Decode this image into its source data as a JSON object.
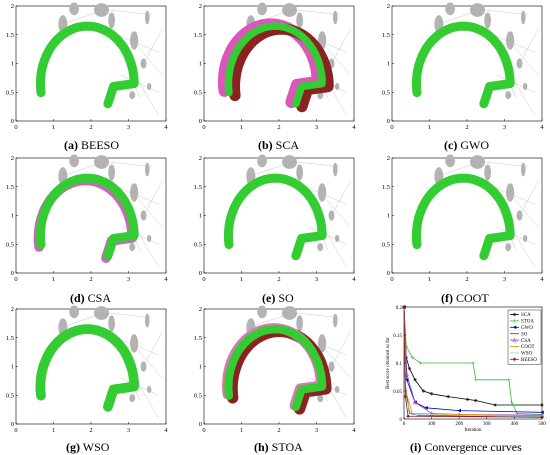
{
  "chart_data": [
    {
      "type": "scatter",
      "panel": "a",
      "caption_letter": "(a)",
      "caption_text": "BEESO",
      "xlim": [
        0,
        4
      ],
      "ylim": [
        0,
        2
      ],
      "xticks": [
        "0",
        "1",
        "2",
        "3",
        "4"
      ],
      "yticks": [
        "0",
        "0.5",
        "1",
        "1.5",
        "2"
      ],
      "layers": [
        {
          "color": "#33cc33",
          "width": 0.24,
          "offset": [
            0,
            0
          ]
        }
      ]
    },
    {
      "type": "scatter",
      "panel": "b",
      "caption_letter": "(b)",
      "caption_text": "SCA",
      "xlim": [
        0,
        4
      ],
      "ylim": [
        0,
        2
      ],
      "xticks": [
        "0",
        "1",
        "2",
        "3",
        "4"
      ],
      "yticks": [
        "0",
        "0.5",
        "1",
        "1.5",
        "2"
      ],
      "layers": [
        {
          "color": "#dd55bb",
          "width": 0.32,
          "offset": [
            -0.12,
            0.03
          ]
        },
        {
          "color": "#8b2222",
          "width": 0.3,
          "offset": [
            0.16,
            -0.05
          ]
        },
        {
          "color": "#33cc33",
          "width": 0.2,
          "offset": [
            0,
            0
          ]
        }
      ]
    },
    {
      "type": "scatter",
      "panel": "c",
      "caption_letter": "(c)",
      "caption_text": "GWO",
      "xlim": [
        0,
        4
      ],
      "ylim": [
        0,
        2
      ],
      "xticks": [
        "0",
        "1",
        "2",
        "3",
        "4"
      ],
      "yticks": [
        "0",
        "0.5",
        "1",
        "1.5",
        "2"
      ],
      "layers": [
        {
          "color": "#33cc33",
          "width": 0.24,
          "offset": [
            0,
            0
          ]
        }
      ]
    },
    {
      "type": "scatter",
      "panel": "d",
      "caption_letter": "(d)",
      "caption_text": "CSA",
      "xlim": [
        0,
        4
      ],
      "ylim": [
        0,
        2
      ],
      "xticks": [
        "0",
        "1",
        "2",
        "3",
        "4"
      ],
      "yticks": [
        "0",
        "0.5",
        "1",
        "1.5",
        "2"
      ],
      "layers": [
        {
          "color": "#cc66bb",
          "width": 0.26,
          "offset": [
            -0.05,
            -0.04
          ]
        },
        {
          "color": "#33cc33",
          "width": 0.24,
          "offset": [
            0,
            0
          ]
        }
      ]
    },
    {
      "type": "scatter",
      "panel": "e",
      "caption_letter": "(e)",
      "caption_text": "SO",
      "xlim": [
        0,
        4
      ],
      "ylim": [
        0,
        2
      ],
      "xticks": [
        "0",
        "1",
        "2",
        "3",
        "4"
      ],
      "yticks": [
        "0",
        "0.5",
        "1",
        "1.5",
        "2"
      ],
      "layers": [
        {
          "color": "#33cc33",
          "width": 0.24,
          "offset": [
            0,
            0
          ]
        }
      ]
    },
    {
      "type": "scatter",
      "panel": "f",
      "caption_letter": "(f)",
      "caption_text": "COOT",
      "xlim": [
        0,
        4
      ],
      "ylim": [
        0,
        2
      ],
      "xticks": [
        "0",
        "1",
        "2",
        "3",
        "4"
      ],
      "yticks": [
        "0",
        "0.5",
        "1",
        "1.5",
        "2"
      ],
      "layers": [
        {
          "color": "#33cc33",
          "width": 0.24,
          "offset": [
            0,
            0
          ]
        }
      ]
    },
    {
      "type": "scatter",
      "panel": "g",
      "caption_letter": "(g)",
      "caption_text": "WSO",
      "xlim": [
        0,
        4
      ],
      "ylim": [
        0,
        2
      ],
      "xticks": [
        "0",
        "1",
        "2",
        "3",
        "4"
      ],
      "yticks": [
        "0",
        "0.5",
        "1",
        "1.5",
        "2"
      ],
      "layers": [
        {
          "color": "#33cc33",
          "width": 0.26,
          "offset": [
            0,
            0
          ]
        }
      ]
    },
    {
      "type": "scatter",
      "panel": "h",
      "caption_letter": "(h)",
      "caption_text": "STOA",
      "xlim": [
        0,
        4
      ],
      "ylim": [
        0,
        2
      ],
      "xticks": [
        "0",
        "1",
        "2",
        "3",
        "4"
      ],
      "yticks": [
        "0",
        "0.5",
        "1",
        "1.5",
        "2"
      ],
      "layers": [
        {
          "color": "#8b2222",
          "width": 0.3,
          "offset": [
            0.1,
            -0.04
          ]
        },
        {
          "color": "#dd77bb",
          "width": 0.26,
          "offset": [
            -0.04,
            0.02
          ]
        },
        {
          "color": "#33cc33",
          "width": 0.22,
          "offset": [
            0,
            0
          ]
        }
      ]
    },
    {
      "type": "line",
      "panel": "i",
      "caption_letter": "(i)",
      "caption_text": "Convergence curves",
      "xlabel": "Iteration",
      "ylabel": "Best score obtained so far",
      "xlim": [
        0,
        500
      ],
      "ylim": [
        0,
        0.2
      ],
      "xticks": [
        "0",
        "100",
        "200",
        "300",
        "400",
        "500"
      ],
      "yticks": [
        "0",
        "0.05",
        "0.1",
        "0.15",
        "0.2"
      ],
      "legend_position": "top-right",
      "series": [
        {
          "name": "SCA",
          "color": "#000000",
          "marker": "star",
          "points": [
            [
              0,
              0.2
            ],
            [
              8,
              0.11
            ],
            [
              20,
              0.09
            ],
            [
              40,
              0.07
            ],
            [
              70,
              0.05
            ],
            [
              100,
              0.045
            ],
            [
              160,
              0.04
            ],
            [
              230,
              0.035
            ],
            [
              260,
              0.033
            ],
            [
              330,
              0.025
            ],
            [
              500,
              0.025
            ]
          ]
        },
        {
          "name": "STOA",
          "color": "#33bb33",
          "marker": "plus",
          "points": [
            [
              0,
              0.2
            ],
            [
              8,
              0.13
            ],
            [
              30,
              0.11
            ],
            [
              60,
              0.1
            ],
            [
              250,
              0.1
            ],
            [
              260,
              0.07
            ],
            [
              380,
              0.07
            ],
            [
              390,
              0.03
            ],
            [
              410,
              0.01
            ],
            [
              500,
              0.008
            ]
          ]
        },
        {
          "name": "GWO",
          "color": "#0000cc",
          "marker": "triangle-left",
          "points": [
            [
              0,
              0.2
            ],
            [
              10,
              0.07
            ],
            [
              40,
              0.03
            ],
            [
              80,
              0.02
            ],
            [
              200,
              0.015
            ],
            [
              500,
              0.012
            ]
          ]
        },
        {
          "name": "SO",
          "color": "#cc0000",
          "marker": "none",
          "points": [
            [
              0,
              0.2
            ],
            [
              5,
              0.06
            ],
            [
              20,
              0.01
            ],
            [
              60,
              0.006
            ],
            [
              500,
              0.004
            ]
          ]
        },
        {
          "name": "CSA",
          "color": "#8844aa",
          "marker": "triangle-up",
          "points": [
            [
              0,
              0.2
            ],
            [
              10,
              0.08
            ],
            [
              40,
              0.03
            ],
            [
              100,
              0.01
            ],
            [
              200,
              0.008
            ],
            [
              500,
              0.007
            ]
          ]
        },
        {
          "name": "COOT",
          "color": "#dd9900",
          "marker": "none",
          "points": [
            [
              0,
              0.2
            ],
            [
              6,
              0.05
            ],
            [
              30,
              0.01
            ],
            [
              500,
              0.005
            ]
          ]
        },
        {
          "name": "WSO",
          "color": "#88ccee",
          "marker": "none",
          "points": [
            [
              0,
              0.2
            ],
            [
              6,
              0.04
            ],
            [
              25,
              0.008
            ],
            [
              500,
              0.004
            ]
          ]
        },
        {
          "name": "BEESO",
          "color": "#8b1a1a",
          "marker": "diamond",
          "points": [
            [
              0,
              0.2
            ],
            [
              5,
              0.04
            ],
            [
              15,
              0.005
            ],
            [
              500,
              0.003
            ]
          ]
        }
      ]
    }
  ]
}
